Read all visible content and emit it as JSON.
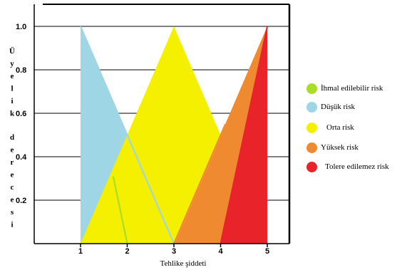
{
  "chart_data": {
    "type": "area",
    "title": "",
    "xlabel": "Tehlike şiddeti",
    "ylabel": "Üyelik derecesi",
    "xlim": [
      0.0,
      5.4
    ],
    "ylim": [
      0,
      1.1
    ],
    "x_ticks": [
      1,
      2,
      3,
      4,
      5
    ],
    "y_ticks": [
      0.2,
      0.4,
      0.6,
      0.8,
      1.0
    ],
    "y_tick_labels": [
      "0.2",
      "0.4",
      "0.6",
      "0.8",
      "1.0"
    ],
    "grid": "horizontal",
    "legend_position": "right",
    "series": [
      {
        "name": "İhmal edilebilir risk",
        "color": "#a8dd2a",
        "points": [
          [
            1,
            0
          ],
          [
            1,
            1
          ],
          [
            2,
            0
          ]
        ]
      },
      {
        "name": "Düşük risk",
        "color": "#9ed6e6",
        "points": [
          [
            1,
            1
          ],
          [
            3,
            0
          ],
          [
            1,
            0
          ]
        ]
      },
      {
        "name": "Orta risk",
        "color": "#f5ef00",
        "points": [
          [
            1,
            0
          ],
          [
            3,
            1
          ],
          [
            5,
            0
          ]
        ]
      },
      {
        "name": "Yüksek risk",
        "color": "#f08a30",
        "points": [
          [
            3,
            0
          ],
          [
            5,
            1
          ],
          [
            5,
            0
          ]
        ]
      },
      {
        "name": "Tolere edilemez risk",
        "color": "#e8232a",
        "points": [
          [
            4,
            0
          ],
          [
            5,
            1
          ],
          [
            5,
            0
          ]
        ]
      }
    ]
  }
}
